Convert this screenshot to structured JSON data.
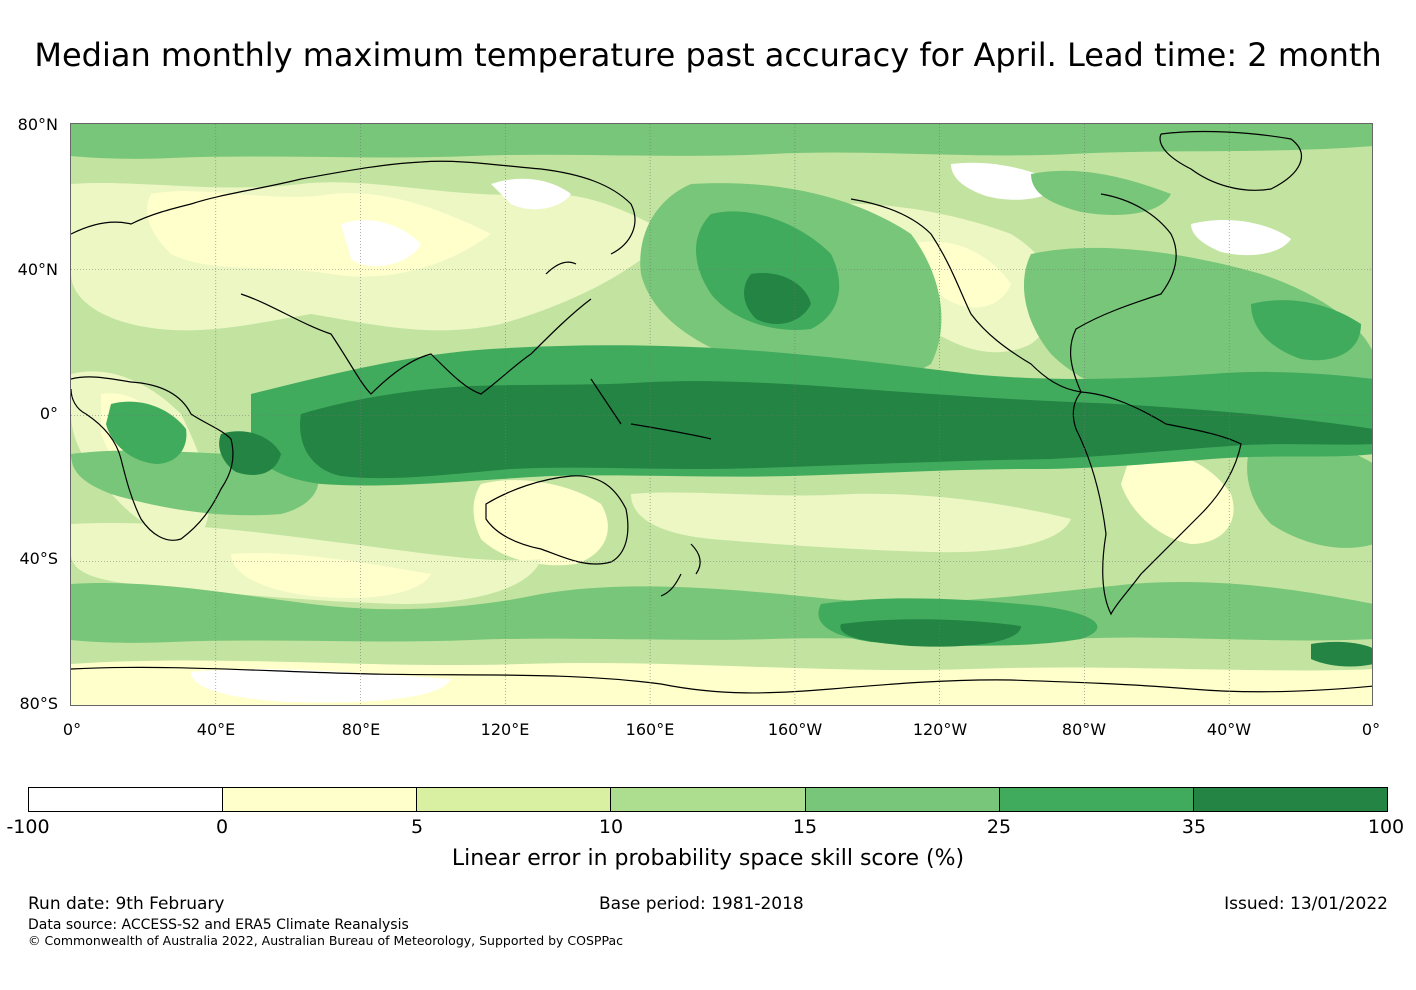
{
  "title": "Median monthly maximum temperature past accuracy for April. Lead time: 2 month",
  "map": {
    "lat_labels": [
      "80°N",
      "40°N",
      "0°",
      "40°S",
      "80°S"
    ],
    "lon_labels": [
      "0°",
      "40°E",
      "80°E",
      "120°E",
      "160°E",
      "160°W",
      "120°W",
      "80°W",
      "40°W",
      "0°"
    ]
  },
  "colorbar": {
    "ticks": [
      "-100",
      "0",
      "5",
      "10",
      "15",
      "25",
      "35",
      "100"
    ],
    "colors": [
      "#ffffff",
      "#ffffcc",
      "#d9f0a3",
      "#addd8e",
      "#78c679",
      "#41ab5d",
      "#238443"
    ],
    "label": "Linear error in probability space skill score (%)"
  },
  "footer": {
    "run_date": "Run date: 9th February",
    "base_period": "Base period: 1981-2018",
    "issued": "Issued: 13/01/2022",
    "data_source": "Data source: ACCESS-S2 and ERA5 Climate Reanalysis",
    "copyright": "© Commonwealth of Australia 2022, Australian Bureau of Meteorology, Supported by COSPPac"
  }
}
